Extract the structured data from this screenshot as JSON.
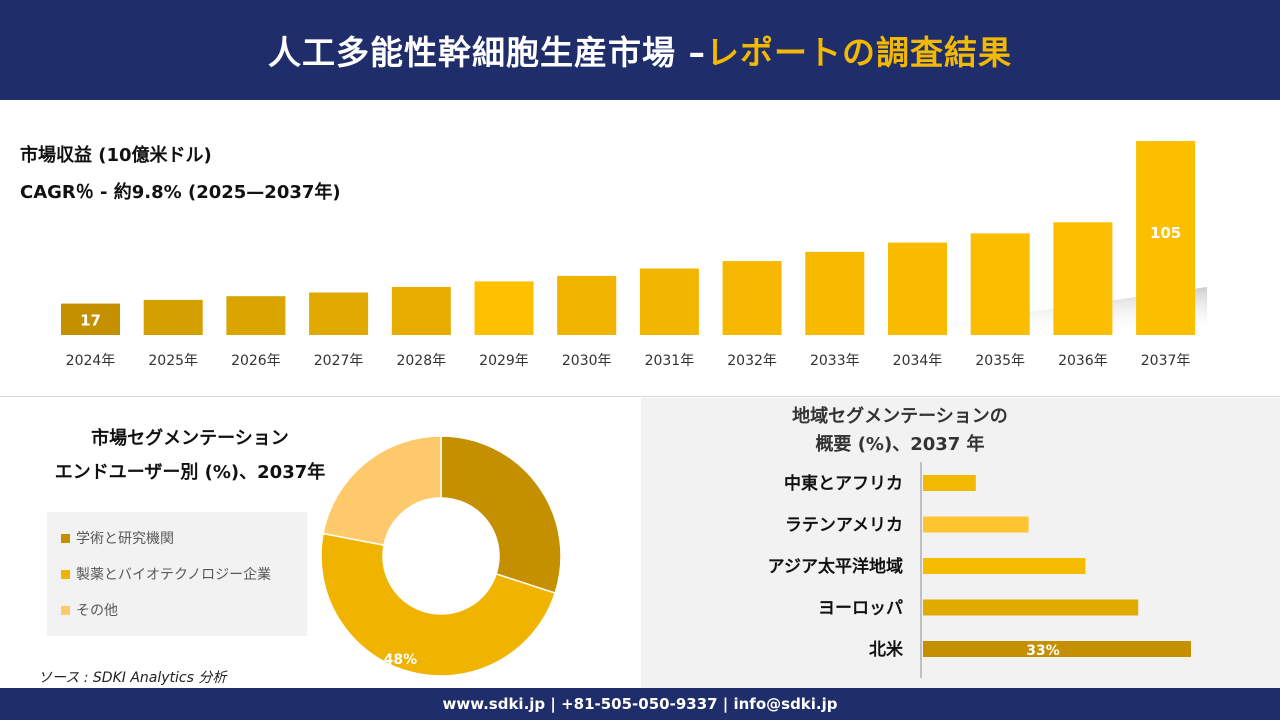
{
  "header": {
    "title_main": "人工多能性幹細胞生産市場 –",
    "title_accent": "レポートの調査結果"
  },
  "summary": {
    "revenue_label": "市場収益 (10億米ドル)",
    "cagr_label": "CAGR％ - 約9.8% (2025—2037年)"
  },
  "colors": {
    "navy": "#1f2d6b",
    "accent": "#f3b800",
    "bar_dark": "#c49000",
    "bar_mid": "#e0a800",
    "bar_light": "#ffc000",
    "segment_1": "#c49000",
    "segment_2": "#f0b400",
    "segment_3": "#fdc96a"
  },
  "chart_data": [
    {
      "type": "bar",
      "categories": [
        "2024年",
        "2025年",
        "2026年",
        "2027年",
        "2028年",
        "2029年",
        "2030年",
        "2031年",
        "2032年",
        "2033年",
        "2034年",
        "2035年",
        "2036年",
        "2037年"
      ],
      "values": [
        17,
        19,
        21,
        23,
        26,
        29,
        32,
        36,
        40,
        45,
        50,
        55,
        61,
        105
      ],
      "data_labels": [
        "17",
        "",
        "",
        "",
        "",
        "",
        "",
        "",
        "",
        "",
        "",
        "",
        "",
        "105"
      ],
      "title": "",
      "xlabel": "",
      "ylabel": ""
    },
    {
      "type": "pie",
      "variant": "donut",
      "title": "市場セグメンテーション エンドユーザー別 (%)、2037年",
      "title_lines": [
        "市場セグメンテーション",
        "エンドユーザー別 (%)、2037年"
      ],
      "labels": [
        "学術と研究機関",
        "製薬とバイオテクノロジー企業",
        "その他"
      ],
      "values": [
        30,
        48,
        22
      ],
      "data_labels": [
        "",
        "48%",
        ""
      ],
      "legend_position": "left"
    },
    {
      "type": "bar",
      "orientation": "horizontal",
      "title": "地域セグメンテーションの 概要 (%)、2037 年",
      "title_lines": [
        "地域セグメンテーションの",
        "概要 (%)、2037 年"
      ],
      "categories": [
        "中東とアフリカ",
        "ラテンアメリカ",
        "アジア太平洋地域",
        "ヨーロッパ",
        "北米"
      ],
      "values": [
        6.5,
        13,
        20,
        26.5,
        33
      ],
      "data_labels": [
        "",
        "",
        "",
        "",
        "33%"
      ]
    }
  ],
  "source": "ソース : SDKI Analytics 分析",
  "footer": {
    "text": "www.sdki.jp | +81-505-050-9337 | info@sdki.jp"
  }
}
